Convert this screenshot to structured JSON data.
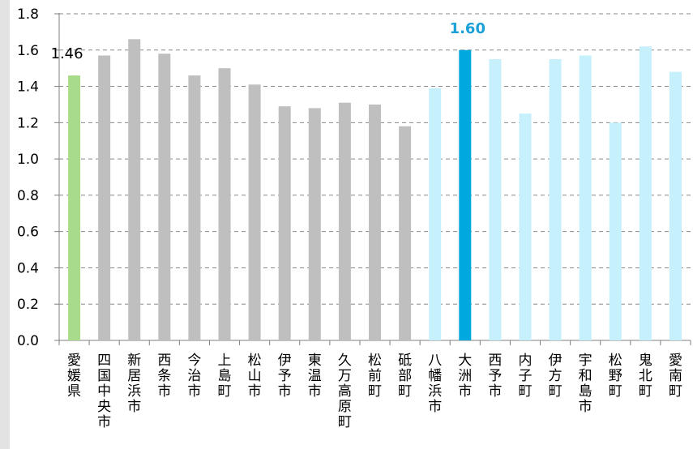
{
  "chart_data": {
    "type": "bar",
    "title": "",
    "xlabel": "",
    "ylabel": "",
    "ylim": [
      0,
      1.8
    ],
    "yticks": [
      "0.0",
      "0.2",
      "0.4",
      "0.6",
      "0.8",
      "1.0",
      "1.2",
      "1.4",
      "1.6",
      "1.8"
    ],
    "grid": true,
    "legend": "none",
    "categories": [
      "愛媛県",
      "四国中央市",
      "新居浜市",
      "西条市",
      "今治市",
      "上島町",
      "松山市",
      "伊予市",
      "東温市",
      "久万高原町",
      "松前町",
      "砥部町",
      "八幡浜市",
      "大洲市",
      "西予市",
      "内子町",
      "伊方町",
      "宇和島市",
      "松野町",
      "鬼北町",
      "愛南町"
    ],
    "values": [
      1.46,
      1.57,
      1.66,
      1.58,
      1.46,
      1.5,
      1.41,
      1.29,
      1.28,
      1.31,
      1.3,
      1.18,
      1.39,
      1.6,
      1.55,
      1.25,
      1.55,
      1.57,
      1.2,
      1.62,
      1.48
    ],
    "bar_colors": [
      "#a8dc8a",
      "#bfbfbf",
      "#bfbfbf",
      "#bfbfbf",
      "#bfbfbf",
      "#bfbfbf",
      "#bfbfbf",
      "#bfbfbf",
      "#bfbfbf",
      "#bfbfbf",
      "#bfbfbf",
      "#bfbfbf",
      "#c5f0fc",
      "#00a8e0",
      "#c5f0fc",
      "#c5f0fc",
      "#c5f0fc",
      "#c5f0fc",
      "#c5f0fc",
      "#c5f0fc",
      "#c5f0fc"
    ],
    "data_labels": [
      {
        "index": 0,
        "text": "1.46",
        "color": "#000000",
        "bold": false
      },
      {
        "index": 13,
        "text": "1.60",
        "color": "#1ba0d8",
        "bold": true
      }
    ]
  },
  "colors": {
    "axis": "#7f7f7f",
    "grid": "#888888",
    "tick_text": "#000000",
    "edge_strip": "#e3e3e3"
  }
}
